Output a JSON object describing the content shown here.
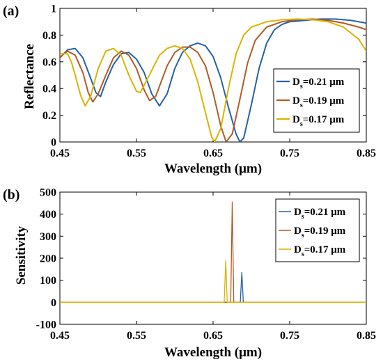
{
  "panels": {
    "a": {
      "panel_label": "(a)",
      "xlabel": "Wavelength (μm)",
      "ylabel": "Reflectance"
    },
    "b": {
      "panel_label": "(b)",
      "xlabel": "Wavelength (μm)",
      "ylabel": "Sensitivity"
    }
  },
  "legend": [
    {
      "prefix": "D",
      "sub": "s",
      "rest": "=0.21 μm",
      "color": "#2462aa"
    },
    {
      "prefix": "D",
      "sub": "s",
      "rest": "=0.19 μm",
      "color": "#b35a26"
    },
    {
      "prefix": "D",
      "sub": "s",
      "rest": "=0.17 μm",
      "color": "#d9b400"
    }
  ],
  "chart_data": [
    {
      "type": "line",
      "xlabel": "Wavelength (μm)",
      "ylabel": "Reflectance",
      "xlim": [
        0.45,
        0.85
      ],
      "ylim": [
        0,
        1
      ],
      "xticks": [
        "0.45",
        "0.55",
        "0.65",
        "0.75",
        "0.85"
      ],
      "yticks": [
        "0",
        "0.2",
        "0.4",
        "0.6",
        "0.8",
        "1"
      ],
      "legend_position": "lower-right",
      "series": [
        {
          "name": "Ds=0.21 μm",
          "color": "#2462aa",
          "points": [
            [
              0.45,
              0.63
            ],
            [
              0.46,
              0.69
            ],
            [
              0.47,
              0.7
            ],
            [
              0.48,
              0.63
            ],
            [
              0.49,
              0.48
            ],
            [
              0.497,
              0.37
            ],
            [
              0.503,
              0.34
            ],
            [
              0.51,
              0.45
            ],
            [
              0.52,
              0.58
            ],
            [
              0.53,
              0.66
            ],
            [
              0.54,
              0.67
            ],
            [
              0.55,
              0.62
            ],
            [
              0.56,
              0.52
            ],
            [
              0.57,
              0.36
            ],
            [
              0.58,
              0.27
            ],
            [
              0.59,
              0.36
            ],
            [
              0.6,
              0.55
            ],
            [
              0.61,
              0.67
            ],
            [
              0.62,
              0.72
            ],
            [
              0.63,
              0.74
            ],
            [
              0.64,
              0.72
            ],
            [
              0.65,
              0.64
            ],
            [
              0.66,
              0.48
            ],
            [
              0.67,
              0.26
            ],
            [
              0.68,
              0.06
            ],
            [
              0.685,
              0.0
            ],
            [
              0.69,
              0.03
            ],
            [
              0.7,
              0.28
            ],
            [
              0.71,
              0.55
            ],
            [
              0.72,
              0.74
            ],
            [
              0.73,
              0.84
            ],
            [
              0.74,
              0.88
            ],
            [
              0.75,
              0.9
            ],
            [
              0.77,
              0.91
            ],
            [
              0.79,
              0.92
            ],
            [
              0.81,
              0.92
            ],
            [
              0.83,
              0.91
            ],
            [
              0.85,
              0.89
            ]
          ]
        },
        {
          "name": "Ds=0.19 μm",
          "color": "#b35a26",
          "points": [
            [
              0.45,
              0.63
            ],
            [
              0.455,
              0.66
            ],
            [
              0.46,
              0.68
            ],
            [
              0.47,
              0.65
            ],
            [
              0.48,
              0.52
            ],
            [
              0.487,
              0.37
            ],
            [
              0.493,
              0.3
            ],
            [
              0.5,
              0.36
            ],
            [
              0.51,
              0.5
            ],
            [
              0.52,
              0.63
            ],
            [
              0.53,
              0.68
            ],
            [
              0.54,
              0.65
            ],
            [
              0.55,
              0.55
            ],
            [
              0.56,
              0.39
            ],
            [
              0.567,
              0.31
            ],
            [
              0.575,
              0.34
            ],
            [
              0.59,
              0.57
            ],
            [
              0.6,
              0.67
            ],
            [
              0.61,
              0.71
            ],
            [
              0.62,
              0.71
            ],
            [
              0.63,
              0.67
            ],
            [
              0.64,
              0.57
            ],
            [
              0.65,
              0.37
            ],
            [
              0.66,
              0.12
            ],
            [
              0.667,
              0.0
            ],
            [
              0.675,
              0.06
            ],
            [
              0.685,
              0.32
            ],
            [
              0.695,
              0.59
            ],
            [
              0.705,
              0.76
            ],
            [
              0.72,
              0.86
            ],
            [
              0.74,
              0.9
            ],
            [
              0.76,
              0.915
            ],
            [
              0.78,
              0.92
            ],
            [
              0.8,
              0.91
            ],
            [
              0.82,
              0.89
            ],
            [
              0.84,
              0.86
            ],
            [
              0.85,
              0.84
            ]
          ]
        },
        {
          "name": "Ds=0.17 μm",
          "color": "#d9b400",
          "points": [
            [
              0.45,
              0.66
            ],
            [
              0.46,
              0.66
            ],
            [
              0.465,
              0.6
            ],
            [
              0.47,
              0.5
            ],
            [
              0.477,
              0.35
            ],
            [
              0.483,
              0.27
            ],
            [
              0.49,
              0.34
            ],
            [
              0.5,
              0.55
            ],
            [
              0.51,
              0.68
            ],
            [
              0.52,
              0.7
            ],
            [
              0.53,
              0.65
            ],
            [
              0.54,
              0.5
            ],
            [
              0.55,
              0.38
            ],
            [
              0.555,
              0.37
            ],
            [
              0.565,
              0.48
            ],
            [
              0.58,
              0.65
            ],
            [
              0.59,
              0.7
            ],
            [
              0.6,
              0.72
            ],
            [
              0.61,
              0.7
            ],
            [
              0.62,
              0.62
            ],
            [
              0.63,
              0.45
            ],
            [
              0.64,
              0.22
            ],
            [
              0.648,
              0.04
            ],
            [
              0.652,
              0.0
            ],
            [
              0.66,
              0.1
            ],
            [
              0.67,
              0.4
            ],
            [
              0.68,
              0.66
            ],
            [
              0.69,
              0.8
            ],
            [
              0.7,
              0.86
            ],
            [
              0.72,
              0.9
            ],
            [
              0.74,
              0.915
            ],
            [
              0.76,
              0.92
            ],
            [
              0.78,
              0.915
            ],
            [
              0.8,
              0.9
            ],
            [
              0.82,
              0.86
            ],
            [
              0.84,
              0.77
            ],
            [
              0.85,
              0.68
            ]
          ]
        }
      ]
    },
    {
      "type": "line",
      "xlabel": "Wavelength (μm)",
      "ylabel": "Sensitivity",
      "xlim": [
        0.45,
        0.85
      ],
      "ylim": [
        -100,
        500
      ],
      "xticks": [
        "0.45",
        "0.55",
        "0.65",
        "0.75",
        "0.85"
      ],
      "yticks": [
        "-100",
        "0",
        "100",
        "200",
        "300",
        "400",
        "500"
      ],
      "legend_position": "top-right",
      "series": [
        {
          "name": "Ds=0.21 μm",
          "color": "#2462aa",
          "points": [
            [
              0.45,
              0
            ],
            [
              0.6855,
              0
            ],
            [
              0.6875,
              135
            ],
            [
              0.6895,
              0
            ],
            [
              0.85,
              0
            ]
          ]
        },
        {
          "name": "Ds=0.19 μm",
          "color": "#b35a26",
          "points": [
            [
              0.45,
              0
            ],
            [
              0.673,
              0
            ],
            [
              0.675,
              455
            ],
            [
              0.677,
              0
            ],
            [
              0.85,
              0
            ]
          ]
        },
        {
          "name": "Ds=0.17 μm",
          "color": "#d9b400",
          "points": [
            [
              0.45,
              0
            ],
            [
              0.6645,
              0
            ],
            [
              0.6665,
              188
            ],
            [
              0.6685,
              0
            ],
            [
              0.85,
              0
            ]
          ]
        }
      ]
    }
  ]
}
